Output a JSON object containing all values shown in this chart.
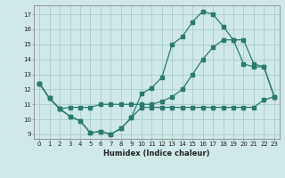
{
  "title": "",
  "xlabel": "Humidex (Indice chaleur)",
  "bg_color": "#cfe8e8",
  "line_color": "#2a7a6e",
  "grid_color": "#b0d0d0",
  "xlim": [
    -0.5,
    23.5
  ],
  "ylim": [
    8.7,
    17.6
  ],
  "xticks": [
    0,
    1,
    2,
    3,
    4,
    5,
    6,
    7,
    8,
    9,
    10,
    11,
    12,
    13,
    14,
    15,
    16,
    17,
    18,
    19,
    20,
    21,
    22,
    23
  ],
  "yticks": [
    9,
    10,
    11,
    12,
    13,
    14,
    15,
    16,
    17
  ],
  "line1_x": [
    0,
    1,
    2,
    3,
    4,
    5,
    6,
    7,
    8,
    9,
    10,
    11,
    12,
    13,
    14,
    15,
    16,
    17,
    18,
    19,
    20,
    21,
    22,
    23
  ],
  "line1_y": [
    12.4,
    11.4,
    10.7,
    10.2,
    9.9,
    9.1,
    9.2,
    9.0,
    9.4,
    10.1,
    10.8,
    10.8,
    10.8,
    10.8,
    10.8,
    10.8,
    10.8,
    10.8,
    10.8,
    10.8,
    10.8,
    10.8,
    11.3,
    11.5
  ],
  "line2_x": [
    0,
    1,
    2,
    3,
    4,
    5,
    6,
    7,
    8,
    9,
    10,
    11,
    12,
    13,
    14,
    15,
    16,
    17,
    18,
    19,
    20,
    21,
    22,
    23
  ],
  "line2_y": [
    12.4,
    11.4,
    10.7,
    10.8,
    10.8,
    10.8,
    11.0,
    11.0,
    11.0,
    11.0,
    11.0,
    11.0,
    11.2,
    11.5,
    12.0,
    13.0,
    14.0,
    14.8,
    15.3,
    15.3,
    15.3,
    13.7,
    13.5,
    11.5
  ],
  "line3_x": [
    0,
    1,
    2,
    3,
    4,
    5,
    6,
    7,
    8,
    9,
    10,
    11,
    12,
    13,
    14,
    15,
    16,
    17,
    18,
    19,
    20,
    21,
    22,
    23
  ],
  "line3_y": [
    12.4,
    11.4,
    10.7,
    10.2,
    9.9,
    9.1,
    9.2,
    9.0,
    9.4,
    10.1,
    11.7,
    12.1,
    12.8,
    15.0,
    15.5,
    16.5,
    17.2,
    17.0,
    16.2,
    15.3,
    13.7,
    13.5,
    13.5,
    11.5
  ]
}
